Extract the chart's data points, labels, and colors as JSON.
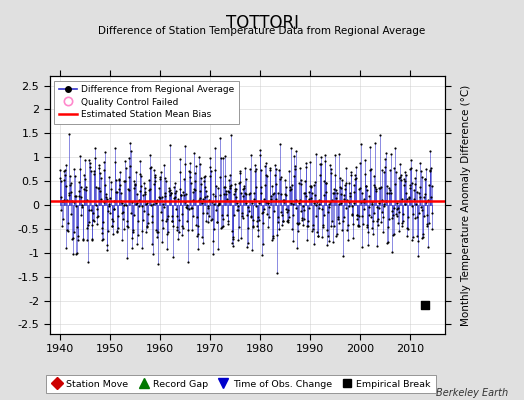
{
  "title": "TOTTORI",
  "subtitle": "Difference of Station Temperature Data from Regional Average",
  "ylabel": "Monthly Temperature Anomaly Difference (°C)",
  "xlabel_years": [
    1940,
    1950,
    1960,
    1970,
    1980,
    1990,
    2000,
    2010
  ],
  "yticks": [
    -2.5,
    -2,
    -1.5,
    -1,
    -0.5,
    0,
    0.5,
    1,
    1.5,
    2,
    2.5
  ],
  "xlim": [
    1938,
    2017
  ],
  "ylim": [
    -2.7,
    2.7
  ],
  "mean_bias": 0.08,
  "empirical_break_year": 2013,
  "empirical_break_value": -2.1,
  "background_color": "#e0e0e0",
  "plot_bg_color": "#ffffff",
  "line_color": "#3333cc",
  "dot_color": "#000000",
  "bias_line_color": "#ff0000",
  "legend1_items": [
    "Difference from Regional Average",
    "Quality Control Failed",
    "Estimated Station Mean Bias"
  ],
  "legend2_items": [
    "Station Move",
    "Record Gap",
    "Time of Obs. Change",
    "Empirical Break"
  ],
  "seed": 12345,
  "figsize": [
    5.24,
    4.0
  ],
  "dpi": 100
}
